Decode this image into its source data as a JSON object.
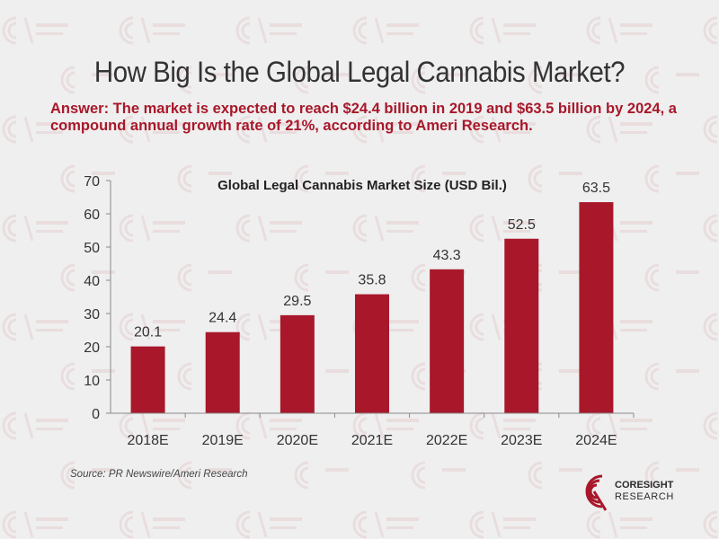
{
  "title": "How Big Is the Global Legal Cannabis Market?",
  "answer": "Answer: The market is expected to reach $24.4 billion in 2019 and $63.5 billion by 2024, a compound annual growth rate of 21%, according to Ameri Research.",
  "source": "Source: PR Newswire/Ameri Research",
  "brand": {
    "line1": "CORESIGHT",
    "line2": "RESEARCH"
  },
  "colors": {
    "bar": "#a8182a",
    "answer": "#a8182a",
    "background": "#efefef"
  },
  "chart_data": {
    "type": "bar",
    "title": "Global Legal Cannabis Market Size (USD Bil.)",
    "categories": [
      "2018E",
      "2019E",
      "2020E",
      "2021E",
      "2022E",
      "2023E",
      "2024E"
    ],
    "values": [
      20.1,
      24.4,
      29.5,
      35.8,
      43.3,
      52.5,
      63.5
    ],
    "value_labels": [
      "20.1",
      "24.4",
      "29.5",
      "35.8",
      "43.3",
      "52.5",
      "63.5"
    ],
    "yticks": [
      0,
      10,
      20,
      30,
      40,
      50,
      60,
      70
    ],
    "ylim": [
      0,
      70
    ],
    "xlabel": "",
    "ylabel": "",
    "grid": false,
    "legend": "none"
  }
}
